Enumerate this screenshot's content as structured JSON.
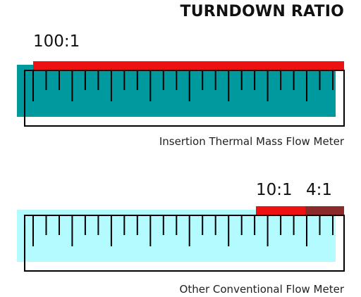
{
  "title": "TURNDOWN RATIO",
  "meters": [
    {
      "ratio_label": "100:1",
      "caption": "Insertion Thermal Mass Flow Meter",
      "turndown": 100,
      "fill_color": "#00999e",
      "bar_color": "#ee1111"
    },
    {
      "ratio_labels": [
        "10:1",
        "4:1"
      ],
      "caption": "Other Conventional Flow Meter",
      "turndown_range": [
        4,
        10
      ],
      "fill_color": "#b3fbff",
      "bar_colors": [
        "#ee1111",
        "#8b2a28"
      ]
    }
  ],
  "ruler": {
    "tick_count": 24,
    "stroke_color": "#000000"
  }
}
